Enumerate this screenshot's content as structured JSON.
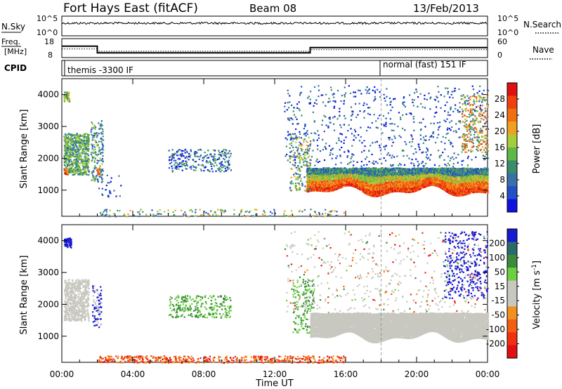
{
  "header": {
    "station": "Fort Hays East (fitACF)",
    "beam": "Beam 08",
    "date": "13/Feb/2013"
  },
  "top_panels": {
    "nsky_label": "N.Sky",
    "nsky_ticks_left": [
      "10^5",
      "10^0"
    ],
    "nsky_ticks_right": [
      "10^5",
      "10^0"
    ],
    "nsearch_label": "N.Search",
    "freq_label_line1": "Freq.",
    "freq_label_line2": "[MHz]",
    "freq_ticks_left": [
      "18",
      "8"
    ],
    "nave_ticks_right": [
      "60",
      "0"
    ],
    "nave_label": "Nave",
    "cpid_label": "CPID",
    "cpid_mode_1": "themis -3300 IF",
    "cpid_mode_2": "normal (fast) 151 IF"
  },
  "colors": {
    "power_scale": [
      "#1010e0",
      "#2050c8",
      "#3a6fa8",
      "#3a8c6a",
      "#5fb84a",
      "#a6cc3a",
      "#f0a020",
      "#f07010",
      "#f04010",
      "#e01010"
    ],
    "velocity_scale": [
      "#1a1ad0",
      "#2a6a6a",
      "#3a8a3a",
      "#6ad040",
      "#c8c8c0",
      "#c8c8c0",
      "#f09020",
      "#f06010",
      "#f03010",
      "#e01010"
    ],
    "gray_scatter": "#c8c8c0"
  },
  "chart_data": [
    {
      "type": "line",
      "title": "Fort Hays East (fitACF)",
      "panel": "N.Sky / N.Search",
      "ylabel": "N.Sky",
      "y_scale": "log",
      "ylim": [
        "10^0",
        "10^5"
      ],
      "series": [
        {
          "name": "N.Sky",
          "approx_value": "~10^4 throughout the day"
        }
      ]
    },
    {
      "type": "line",
      "panel": "Freq / Nave",
      "ylabel": "Freq. [MHz]",
      "ylim_left": [
        8,
        18
      ],
      "ylim_right": [
        0,
        60
      ],
      "series": [
        {
          "name": "Freq",
          "x": [
            "00:00",
            "02:00",
            "02:00",
            "14:00",
            "14:00",
            "24:00"
          ],
          "values": [
            14,
            14,
            10.5,
            10.5,
            13.3,
            13.3
          ]
        },
        {
          "name": "Nave",
          "x": [
            "00:00",
            "02:00",
            "02:00",
            "14:00",
            "14:00",
            "18:00",
            "24:00"
          ],
          "values": [
            27,
            27,
            20,
            20,
            25,
            25,
            25
          ]
        }
      ]
    },
    {
      "type": "heatmap",
      "panel": "Power",
      "ylabel": "Slant Range [km]",
      "xlabel": "Time UT",
      "xticks": [
        "00:00",
        "04:00",
        "08:00",
        "12:00",
        "16:00",
        "20:00",
        "00:00"
      ],
      "yticks": [
        1000,
        2000,
        3000,
        4000
      ],
      "ylim": [
        180,
        4500
      ],
      "colorbar": {
        "label": "Power [dB]",
        "ticks": [
          4,
          8,
          12,
          16,
          20,
          24,
          28
        ]
      },
      "features": [
        {
          "time": "00:00-01:30",
          "range_km": [
            1400,
            2900
          ],
          "level": "mid"
        },
        {
          "time": "00:00-00:30",
          "range_km": [
            3800,
            4100
          ],
          "level": "high"
        },
        {
          "time": "01:40-02:20",
          "range_km": [
            1300,
            3200
          ],
          "level": "mid"
        },
        {
          "time": "06:00-09:30",
          "range_km": [
            1600,
            2300
          ],
          "level": "low-mid"
        },
        {
          "time": "14:00-24:00",
          "range_km": [
            1000,
            1700
          ],
          "level": "high (band)"
        },
        {
          "time": "12:30-24:00",
          "range_km": [
            1700,
            4300
          ],
          "level": "low (sparse)"
        },
        {
          "time": "22:00-24:00",
          "range_km": [
            2200,
            4000
          ],
          "level": "mid-high"
        }
      ]
    },
    {
      "type": "heatmap",
      "panel": "Velocity",
      "ylabel": "Slant Range [km]",
      "xlabel": "Time UT",
      "xticks": [
        "00:00",
        "04:00",
        "08:00",
        "12:00",
        "16:00",
        "20:00",
        "00:00"
      ],
      "yticks": [
        1000,
        2000,
        3000,
        4000
      ],
      "ylim": [
        180,
        4500
      ],
      "colorbar": {
        "label": "Velocity [m s^-1]",
        "ticks": [
          200,
          100,
          50,
          15,
          -15,
          -50,
          -100,
          -200
        ]
      },
      "features": [
        {
          "time": "00:00-01:30",
          "range_km": [
            1400,
            2900
          ],
          "value": "ground scatter (gray)"
        },
        {
          "time": "00:00-00:30",
          "range_km": [
            3800,
            4100
          ],
          "value": "+200"
        },
        {
          "time": "06:00-09:30",
          "range_km": [
            1600,
            2300
          ],
          "value": "+50"
        },
        {
          "time": "14:00-24:00",
          "range_km": [
            1000,
            1700
          ],
          "value": "ground scatter (gray)"
        },
        {
          "time": "21:30-24:00",
          "range_km": [
            2200,
            4300
          ],
          "value": "+200"
        },
        {
          "time": "02:00-16:00",
          "range_km": [
            180,
            400
          ],
          "value": "-50 (near range)"
        }
      ]
    }
  ],
  "xlabel": "Time UT",
  "xticks": [
    "00:00",
    "04:00",
    "08:00",
    "12:00",
    "16:00",
    "20:00",
    "00:00"
  ],
  "yticks_labels": [
    "1000",
    "2000",
    "3000",
    "4000"
  ],
  "ylabel": "Slant Range [km]",
  "power_label": "Power [dB]",
  "velocity_label": "Velocity [m s",
  "velocity_label_sup": "-1",
  "velocity_label_end": "]",
  "power_ticks": [
    "4",
    "8",
    "12",
    "16",
    "20",
    "24",
    "28"
  ],
  "velocity_ticks": [
    "200",
    "100",
    "50",
    "15",
    "-15",
    "-50",
    "-100",
    "-200"
  ]
}
